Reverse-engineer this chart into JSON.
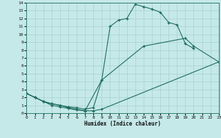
{
  "xlabel": "Humidex (Indice chaleur)",
  "bg_color": "#c5e8e8",
  "grid_color": "#a8d0d0",
  "line_color": "#1a6b5a",
  "xlim": [
    0,
    23
  ],
  "ylim": [
    0,
    14
  ],
  "xticks": [
    0,
    1,
    2,
    3,
    4,
    5,
    6,
    7,
    8,
    9,
    10,
    11,
    12,
    13,
    14,
    15,
    16,
    17,
    18,
    19,
    20,
    21,
    22,
    23
  ],
  "yticks": [
    0,
    1,
    2,
    3,
    4,
    5,
    6,
    7,
    8,
    9,
    10,
    11,
    12,
    13,
    14
  ],
  "line1_x": [
    0,
    1,
    2,
    3,
    4,
    5,
    6,
    7,
    9,
    10,
    11,
    12,
    13,
    14,
    15,
    16,
    17,
    18,
    19,
    20
  ],
  "line1_y": [
    2.5,
    2.0,
    1.5,
    1.2,
    1.0,
    0.7,
    0.5,
    0.3,
    4.2,
    11.0,
    11.8,
    12.0,
    13.8,
    13.5,
    13.2,
    12.8,
    11.5,
    11.2,
    8.8,
    8.2
  ],
  "line2_x": [
    0,
    1,
    2,
    3,
    4,
    5,
    6,
    7,
    8,
    9,
    14,
    19,
    20,
    23
  ],
  "line2_y": [
    2.5,
    2.0,
    1.5,
    1.2,
    1.0,
    0.8,
    0.7,
    0.5,
    0.7,
    4.2,
    8.5,
    9.5,
    8.5,
    6.5
  ],
  "line3_x": [
    0,
    1,
    2,
    3,
    4,
    5,
    6,
    7,
    8,
    9,
    23
  ],
  "line3_y": [
    2.5,
    2.0,
    1.5,
    1.0,
    0.8,
    0.6,
    0.4,
    0.3,
    0.3,
    0.5,
    6.5
  ]
}
